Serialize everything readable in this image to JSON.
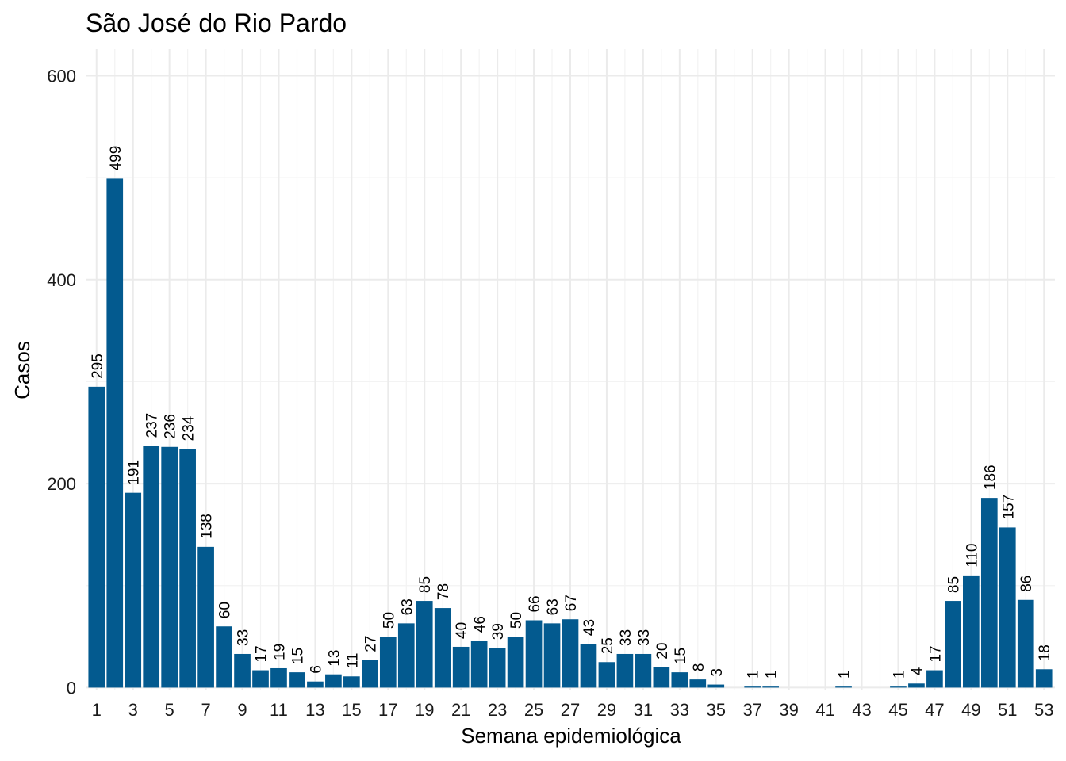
{
  "chart_data": {
    "type": "bar",
    "title": "São José do Rio Pardo",
    "xlabel": "Semana epidemiológica",
    "ylabel": "Casos",
    "ylim": [
      -2,
      626
    ],
    "xlim": [
      0.4,
      53.6
    ],
    "yticks": [
      0,
      200,
      400,
      600
    ],
    "xticks": [
      1,
      3,
      5,
      7,
      9,
      11,
      13,
      15,
      17,
      19,
      21,
      23,
      25,
      27,
      29,
      31,
      33,
      35,
      37,
      39,
      41,
      43,
      45,
      47,
      49,
      51,
      53
    ],
    "grid": true,
    "bar_color": "#035a8f",
    "x": [
      1,
      2,
      3,
      4,
      5,
      6,
      7,
      8,
      9,
      10,
      11,
      12,
      13,
      14,
      15,
      16,
      17,
      18,
      19,
      20,
      21,
      22,
      23,
      24,
      25,
      26,
      27,
      28,
      29,
      30,
      31,
      32,
      33,
      34,
      35,
      37,
      38,
      42,
      45,
      46,
      47,
      48,
      49,
      50,
      51,
      52,
      53
    ],
    "values": [
      295,
      499,
      191,
      237,
      236,
      234,
      138,
      60,
      33,
      17,
      19,
      15,
      6,
      13,
      11,
      27,
      50,
      63,
      85,
      78,
      40,
      46,
      39,
      50,
      66,
      63,
      67,
      43,
      25,
      33,
      33,
      20,
      15,
      8,
      3,
      1,
      1,
      1,
      1,
      4,
      17,
      85,
      110,
      186,
      157,
      86,
      18
    ]
  }
}
